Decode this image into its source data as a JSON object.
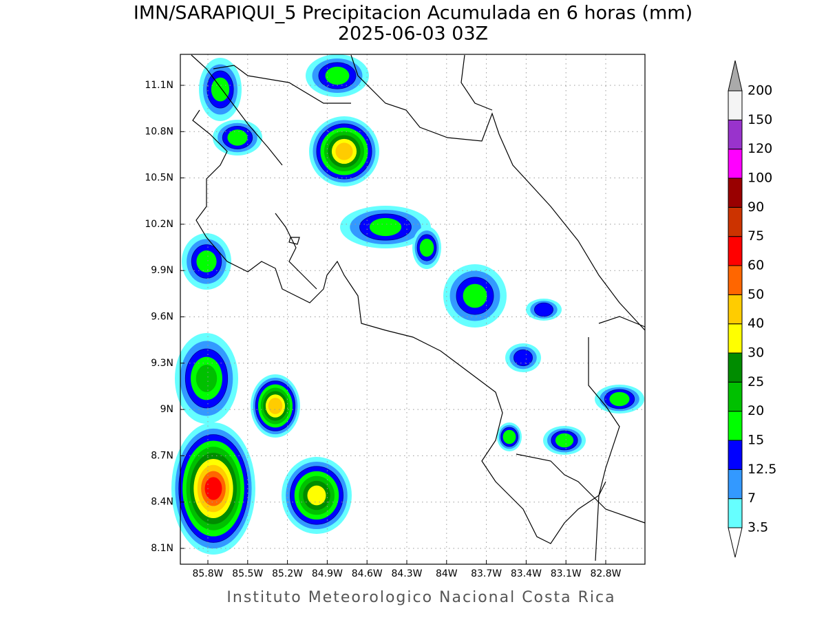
{
  "header": {
    "title": "IMN/SARAPIQUI_5 Precipitacion Acumulada en 6 horas (mm)",
    "subtitle": "2025-06-03 03Z"
  },
  "map": {
    "xticks": [
      "85.8W",
      "85.5W",
      "85.2W",
      "84.9W",
      "84.6W",
      "84.3W",
      "84W",
      "83.7W",
      "83.4W",
      "83.1W",
      "82.8W"
    ],
    "yticks": [
      "11.1N",
      "10.8N",
      "10.5N",
      "10.2N",
      "9.9N",
      "9.6N",
      "9.3N",
      "9N",
      "8.7N",
      "8.4N",
      "8.1N"
    ],
    "grid": true
  },
  "colorbar": {
    "levels": [
      3.5,
      7,
      12.5,
      15,
      20,
      25,
      30,
      40,
      50,
      60,
      75,
      90,
      100,
      120,
      150,
      200
    ],
    "colors": [
      "#66ffff",
      "#3399ff",
      "#0000ff",
      "#00ff00",
      "#00c000",
      "#008c00",
      "#ffff00",
      "#ffcc00",
      "#ff6600",
      "#ff0000",
      "#cc3300",
      "#990000",
      "#ff00ff",
      "#9933cc",
      "#f4f4f4"
    ],
    "over_color": "#aaaaaa",
    "under_color": "#ffffff"
  },
  "footer": {
    "credit": "Instituto Meteorologico Nacional Costa Rica"
  }
}
